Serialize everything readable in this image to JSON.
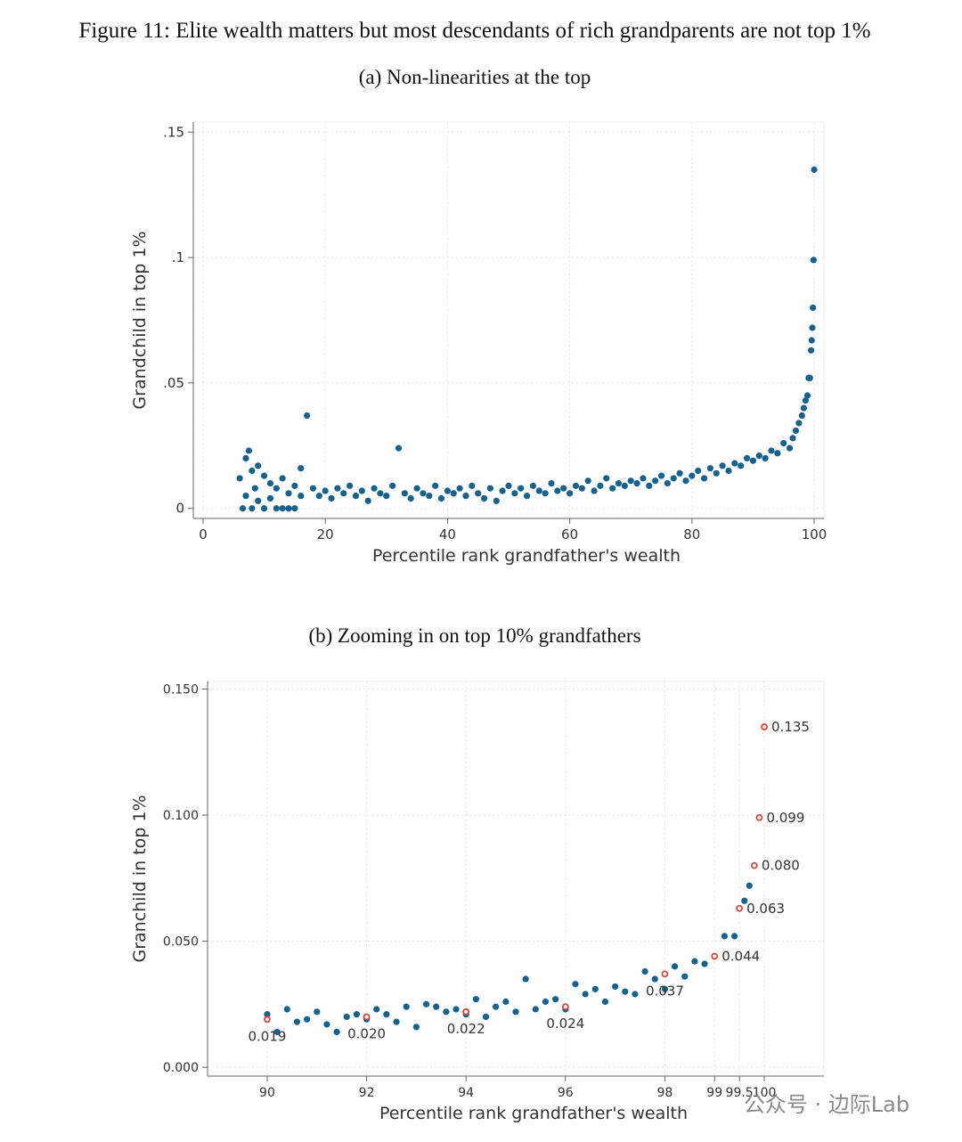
{
  "figure_title": "Figure 11: Elite wealth matters but most descendants of rich grandparents are not top 1%",
  "watermark": "公众号 · 边际Lab",
  "chart_data": [
    {
      "type": "scatter",
      "subtitle": "(a) Non-linearities at the top",
      "xlabel": "Percentile rank grandfather's wealth",
      "ylabel": "Grandchild in top 1%",
      "xlim": [
        -1.6,
        101.6
      ],
      "ylim": [
        -0.004,
        0.154
      ],
      "xticks": [
        0,
        20,
        40,
        60,
        80,
        100
      ],
      "yticks": [
        {
          "value": 0,
          "label": "0"
        },
        {
          "value": 0.05,
          "label": ".05"
        },
        {
          "value": 0.1,
          "label": ".1"
        },
        {
          "value": 0.15,
          "label": ".15"
        }
      ],
      "grid": true,
      "series": [
        {
          "color": "#16628f",
          "marker": "filled",
          "x": [
            6,
            6.5,
            7,
            7,
            7.5,
            8,
            8,
            8.5,
            9,
            9,
            10,
            10,
            11,
            11,
            12,
            12,
            13,
            13,
            14,
            14,
            15,
            15,
            16,
            16,
            17,
            18,
            19,
            20,
            21,
            22,
            23,
            24,
            25,
            26,
            27,
            28,
            29,
            30,
            31,
            32,
            33,
            34,
            35,
            36,
            37,
            38,
            39,
            40,
            41,
            42,
            43,
            44,
            45,
            46,
            47,
            48,
            49,
            50,
            51,
            52,
            53,
            54,
            55,
            56,
            57,
            58,
            59,
            60,
            61,
            62,
            63,
            64,
            65,
            66,
            67,
            68,
            69,
            70,
            71,
            72,
            73,
            74,
            75,
            76,
            77,
            78,
            79,
            80,
            81,
            82,
            83,
            84,
            85,
            86,
            87,
            88,
            89,
            90,
            91,
            92,
            93,
            94,
            95,
            96,
            96.5,
            97,
            97.5,
            98,
            98.3,
            98.6,
            98.9,
            99.1,
            99.3,
            99.5,
            99.6,
            99.7,
            99.8,
            99.9,
            100
          ],
          "values": [
            0.012,
            0,
            0.02,
            0.005,
            0.023,
            0,
            0.015,
            0.008,
            0.017,
            0.003,
            0.013,
            0,
            0.01,
            0.004,
            0,
            0.008,
            0,
            0.012,
            0.006,
            0,
            0.009,
            0,
            0.016,
            0.005,
            0.037,
            0.008,
            0.005,
            0.007,
            0.004,
            0.008,
            0.006,
            0.009,
            0.005,
            0.007,
            0.003,
            0.008,
            0.006,
            0.005,
            0.009,
            0.024,
            0.006,
            0.004,
            0.008,
            0.006,
            0.005,
            0.009,
            0.004,
            0.007,
            0.006,
            0.008,
            0.005,
            0.009,
            0.006,
            0.004,
            0.008,
            0.003,
            0.007,
            0.009,
            0.006,
            0.008,
            0.005,
            0.009,
            0.007,
            0.006,
            0.01,
            0.007,
            0.008,
            0.006,
            0.009,
            0.008,
            0.011,
            0.007,
            0.009,
            0.012,
            0.008,
            0.01,
            0.009,
            0.011,
            0.01,
            0.012,
            0.009,
            0.011,
            0.013,
            0.01,
            0.012,
            0.014,
            0.011,
            0.013,
            0.015,
            0.012,
            0.016,
            0.014,
            0.017,
            0.015,
            0.018,
            0.017,
            0.02,
            0.019,
            0.021,
            0.02,
            0.023,
            0.022,
            0.026,
            0.024,
            0.028,
            0.031,
            0.034,
            0.037,
            0.04,
            0.043,
            0.045,
            0.052,
            0.052,
            0.063,
            0.067,
            0.072,
            0.08,
            0.099,
            0.135
          ]
        }
      ]
    },
    {
      "type": "scatter",
      "subtitle": "(b) Zooming in on top 10% grandfathers",
      "xlabel": "Percentile rank grandfather's wealth",
      "ylabel": "Granchild in top 1%",
      "xlim": [
        88.8,
        101.2
      ],
      "ylim": [
        -0.0035,
        0.153
      ],
      "xticks": [
        90,
        92,
        94,
        96,
        98,
        99,
        99.5,
        100
      ],
      "yticks": [
        {
          "value": 0,
          "label": "0.000"
        },
        {
          "value": 0.05,
          "label": "0.050"
        },
        {
          "value": 0.1,
          "label": "0.100"
        },
        {
          "value": 0.15,
          "label": "0.150"
        }
      ],
      "grid": true,
      "series": [
        {
          "color": "#16628f",
          "marker": "filled",
          "x": [
            90,
            90.2,
            90.4,
            90.6,
            90.8,
            91,
            91.2,
            91.4,
            91.6,
            91.8,
            92,
            92.2,
            92.4,
            92.6,
            92.8,
            93,
            93.2,
            93.4,
            93.6,
            93.8,
            94,
            94.2,
            94.4,
            94.6,
            94.8,
            95,
            95.2,
            95.4,
            95.6,
            95.8,
            96,
            96.2,
            96.4,
            96.6,
            96.8,
            97,
            97.2,
            97.4,
            97.6,
            97.8,
            98,
            98.2,
            98.4,
            98.6,
            98.8,
            99,
            99.2,
            99.4,
            99.6,
            99.7
          ],
          "values": [
            0.021,
            0.014,
            0.023,
            0.018,
            0.019,
            0.022,
            0.017,
            0.014,
            0.02,
            0.021,
            0.019,
            0.023,
            0.021,
            0.018,
            0.024,
            0.016,
            0.025,
            0.024,
            0.022,
            0.023,
            0.021,
            0.027,
            0.02,
            0.024,
            0.026,
            0.022,
            0.035,
            0.023,
            0.026,
            0.027,
            0.023,
            0.033,
            0.029,
            0.031,
            0.026,
            0.032,
            0.03,
            0.029,
            0.038,
            0.035,
            0.031,
            0.04,
            0.036,
            0.042,
            0.041,
            0.044,
            0.052,
            0.052,
            0.066,
            0.072
          ]
        },
        {
          "color": "#e0443c",
          "marker": "hollow",
          "x": [
            90,
            92,
            94,
            96,
            98,
            99,
            99.5,
            99.8,
            99.9,
            100
          ],
          "values": [
            0.019,
            0.02,
            0.022,
            0.024,
            0.037,
            0.044,
            0.063,
            0.08,
            0.099,
            0.135
          ],
          "value_labels": [
            "0.019",
            "0.020",
            "0.022",
            "0.024",
            "0.037",
            "0.044",
            "0.063",
            "0.080",
            "0.099",
            "0.135"
          ]
        }
      ]
    }
  ]
}
